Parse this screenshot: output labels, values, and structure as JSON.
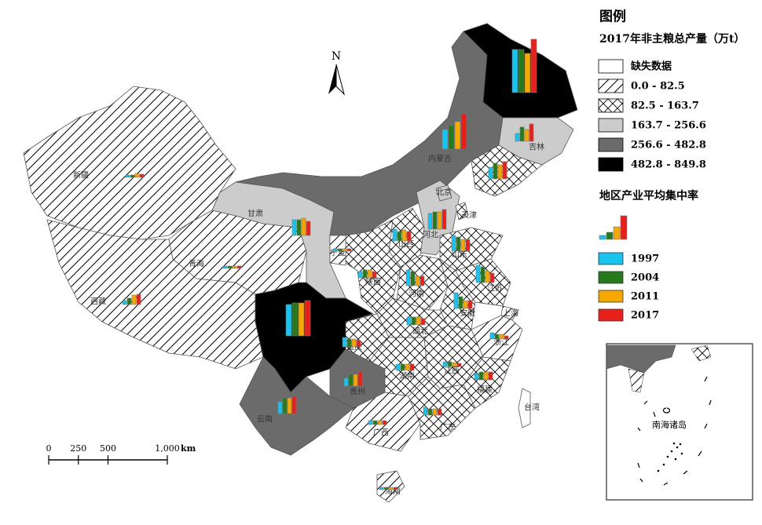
{
  "legend": {
    "title": "图例",
    "subtitle": "2017年非主粮总产量（万t）",
    "classes": [
      {
        "label": "缺失数据",
        "color": "#ffffff"
      },
      {
        "label": "0.0 - 82.5",
        "pattern": "hatch"
      },
      {
        "label": "82.5 - 163.7",
        "pattern": "crosshatch"
      },
      {
        "label": "163.7 - 256.6",
        "color": "#cccccc"
      },
      {
        "label": "256.6 - 482.8",
        "color": "#6b6b6b"
      },
      {
        "label": "482.8 - 849.8",
        "color": "#000000"
      }
    ],
    "bar_title": "地区产业平均集中率",
    "years": [
      {
        "label": "1997",
        "color": "#19c3f0"
      },
      {
        "label": "2004",
        "color": "#267a1c"
      },
      {
        "label": "2011",
        "color": "#f5a800"
      },
      {
        "label": "2017",
        "color": "#e8201c"
      }
    ]
  },
  "north": "N",
  "scale_bar": {
    "xlim": [
      0,
      1000
    ],
    "ticks": [
      0,
      250,
      500,
      {
        "value": 1000,
        "label": "1,000"
      }
    ],
    "unit": "km"
  },
  "inset_label": "南海诸岛",
  "provinces": [
    {
      "name": "新疆",
      "class": 1,
      "bars": [
        3,
        3,
        5,
        4
      ]
    },
    {
      "name": "西藏",
      "class": 1,
      "bars": [
        5,
        8,
        12,
        13
      ]
    },
    {
      "name": "青海",
      "class": 1,
      "bars": [
        3,
        3,
        3,
        3
      ]
    },
    {
      "name": "甘肃",
      "class": 3,
      "bars": [
        20,
        20,
        22,
        18
      ]
    },
    {
      "name": "内蒙古",
      "class": 4,
      "bars": [
        25,
        30,
        35,
        45
      ]
    },
    {
      "class": 5,
      "bars": [
        55,
        55,
        50,
        68
      ]
    },
    {
      "name": "吉林",
      "class": 3,
      "bars": [
        10,
        18,
        15,
        22
      ]
    },
    {
      "class": 2,
      "bars": [
        15,
        20,
        18,
        22
      ]
    },
    {
      "name": "河北",
      "class": 3,
      "bars": [
        20,
        22,
        22,
        25
      ]
    },
    {
      "name": "山西",
      "class": 2,
      "bars": [
        15,
        12,
        14,
        12
      ]
    },
    {
      "name": "陕西",
      "class": 2,
      "bars": [
        8,
        10,
        10,
        8
      ]
    },
    {
      "name": "宁夏",
      "class": 1,
      "bars": [
        3,
        3,
        3,
        3
      ]
    },
    {
      "name": "河南",
      "class": 2,
      "bars": [
        20,
        18,
        12,
        12
      ]
    },
    {
      "name": "山东",
      "class": 2,
      "bars": [
        20,
        18,
        15,
        15
      ]
    },
    {
      "name": "江苏",
      "class": 2,
      "bars": [
        22,
        20,
        15,
        12
      ]
    },
    {
      "name": "安徽",
      "class": 2,
      "bars": [
        20,
        15,
        10,
        10
      ]
    },
    {
      "name": "上海",
      "class": 1
    },
    {
      "name": "浙江",
      "class": 1,
      "bars": [
        8,
        6,
        6,
        4
      ]
    },
    {
      "name": "湖北",
      "class": 2,
      "bars": [
        10,
        10,
        10,
        8
      ]
    },
    {
      "name": "重庆",
      "class": 2,
      "bars": [
        12,
        10,
        10,
        8
      ]
    },
    {
      "class": 5,
      "bars": [
        40,
        42,
        42,
        45
      ]
    },
    {
      "name": "贵州",
      "class": 4,
      "bars": [
        10,
        15,
        15,
        18
      ]
    },
    {
      "name": "云南",
      "class": 4,
      "bars": [
        15,
        20,
        20,
        22
      ]
    },
    {
      "name": "湖南",
      "class": 2,
      "bars": [
        8,
        8,
        8,
        8
      ]
    },
    {
      "name": "江西",
      "class": 2,
      "bars": [
        6,
        6,
        5,
        4
      ]
    },
    {
      "name": "福建",
      "class": 2,
      "bars": [
        8,
        10,
        10,
        10
      ]
    },
    {
      "name": "广西",
      "class": 1,
      "bars": [
        5,
        5,
        5,
        5
      ]
    },
    {
      "name": "广东",
      "class": 2,
      "bars": [
        10,
        8,
        8,
        8
      ]
    },
    {
      "name": "海南",
      "class": 1,
      "bars": [
        3,
        3,
        3,
        3
      ]
    },
    {
      "name": "台湾",
      "class": 0
    },
    {
      "name": "北京",
      "class": 3
    },
    {
      "name": "天津",
      "class": 2
    }
  ]
}
